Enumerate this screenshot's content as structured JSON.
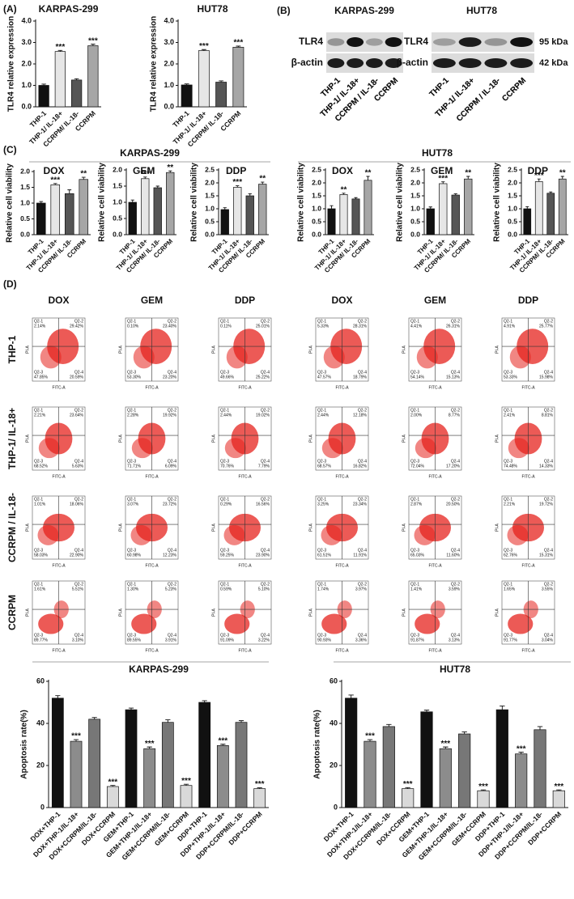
{
  "panel_labels": [
    "(A)",
    "(B)",
    "(C)",
    "(D)"
  ],
  "chart_data": [
    {
      "type": "bar",
      "title": "KARPAS-299",
      "y_label": "TLR4 relative expression",
      "categories": [
        "THP-1",
        "THP-1/ IL-18+",
        "CCRPM/ IL-18-",
        "CCRPM"
      ],
      "values": [
        1.0,
        2.58,
        1.25,
        2.85
      ],
      "errors": [
        0.06,
        0.05,
        0.06,
        0.07
      ],
      "colors": [
        "#111111",
        "#e6e6e6",
        "#555555",
        "#a6a6a6"
      ],
      "annotations": [
        null,
        "***",
        null,
        "***"
      ],
      "ylim": [
        0,
        4
      ],
      "yticks": [
        {
          "value": 0,
          "label": "0.0"
        },
        {
          "value": 1,
          "label": "1.0"
        },
        {
          "value": 2,
          "label": "2.0"
        },
        {
          "value": 3,
          "label": "3.0"
        },
        {
          "value": 4,
          "label": "4.0"
        }
      ]
    },
    {
      "type": "bar",
      "title": "HUT78",
      "y_label": "TLR4 relative expression",
      "categories": [
        "THP-1",
        "THP-1/ IL-18+",
        "CCRPM/ IL-18-",
        "CCRPM"
      ],
      "values": [
        1.02,
        2.62,
        1.15,
        2.78
      ],
      "errors": [
        0.05,
        0.05,
        0.06,
        0.05
      ],
      "colors": [
        "#111111",
        "#e6e6e6",
        "#555555",
        "#a6a6a6"
      ],
      "annotations": [
        null,
        "***",
        null,
        "***"
      ],
      "ylim": [
        0,
        4
      ],
      "yticks": [
        {
          "value": 0,
          "label": "0.0"
        },
        {
          "value": 1,
          "label": "1.0"
        },
        {
          "value": 2,
          "label": "2.0"
        },
        {
          "value": 3,
          "label": "3.0"
        },
        {
          "value": 4,
          "label": "4.0"
        }
      ]
    },
    {
      "type": "bar",
      "title": "DOX",
      "y_label": "Relative cell viability",
      "categories": [
        "THP-1",
        "THP-1/ IL-18+",
        "CCRPM/ IL-18-",
        "CCRPM"
      ],
      "values": [
        1.0,
        1.58,
        1.3,
        1.75
      ],
      "errors": [
        0.05,
        0.04,
        0.12,
        0.07
      ],
      "colors": [
        "#111111",
        "#e6e6e6",
        "#555555",
        "#a6a6a6"
      ],
      "annotations": [
        null,
        "***",
        null,
        "**"
      ],
      "ylim": [
        0,
        2
      ],
      "yticks": [
        {
          "value": 0,
          "label": "0.0"
        },
        {
          "value": 0.5,
          "label": "0.5"
        },
        {
          "value": 1,
          "label": "1.0"
        },
        {
          "value": 1.5,
          "label": "1.5"
        },
        {
          "value": 2,
          "label": "2.0"
        }
      ]
    },
    {
      "type": "bar",
      "title": "GEM",
      "y_label": "Relative cell viability",
      "categories": [
        "THP-1",
        "THP-1/ IL-18+",
        "CCRPM/ IL-18-",
        "CCRPM"
      ],
      "values": [
        1.0,
        1.73,
        1.45,
        1.92
      ],
      "errors": [
        0.07,
        0.05,
        0.05,
        0.05
      ],
      "colors": [
        "#111111",
        "#e6e6e6",
        "#555555",
        "#a6a6a6"
      ],
      "annotations": [
        null,
        "***",
        null,
        "**"
      ],
      "ylim": [
        0,
        2
      ],
      "yticks": [
        {
          "value": 0,
          "label": "0.0"
        },
        {
          "value": 0.5,
          "label": "0.5"
        },
        {
          "value": 1,
          "label": "1.0"
        },
        {
          "value": 1.5,
          "label": "1.5"
        },
        {
          "value": 2,
          "label": "2.0"
        }
      ]
    },
    {
      "type": "bar",
      "title": "DDP",
      "y_label": "Relative cell viability",
      "categories": [
        "THP-1",
        "THP-1/ IL-18+",
        "CCRPM/ IL-18-",
        "CCRPM"
      ],
      "values": [
        0.97,
        1.83,
        1.5,
        1.95
      ],
      "errors": [
        0.07,
        0.06,
        0.08,
        0.08
      ],
      "colors": [
        "#111111",
        "#e6e6e6",
        "#555555",
        "#a6a6a6"
      ],
      "annotations": [
        null,
        "***",
        null,
        "**"
      ],
      "ylim": [
        0,
        2.5
      ],
      "yticks": [
        {
          "value": 0,
          "label": "0.0"
        },
        {
          "value": 0.5,
          "label": "0.5"
        },
        {
          "value": 1,
          "label": "1.0"
        },
        {
          "value": 1.5,
          "label": "1.5"
        },
        {
          "value": 2,
          "label": "2.0"
        },
        {
          "value": 2.5,
          "label": "2.5"
        }
      ]
    },
    {
      "type": "bar",
      "title": "DOX",
      "y_label": "Relative cell viability",
      "categories": [
        "THP-1",
        "THP-1/ IL-18+",
        "CCRPM/ IL-18-",
        "CCRPM"
      ],
      "values": [
        1.0,
        1.55,
        1.38,
        2.1
      ],
      "errors": [
        0.12,
        0.05,
        0.05,
        0.15
      ],
      "colors": [
        "#111111",
        "#e6e6e6",
        "#555555",
        "#a6a6a6"
      ],
      "annotations": [
        null,
        "**",
        null,
        "**"
      ],
      "ylim": [
        0,
        2.5
      ],
      "yticks": [
        {
          "value": 0,
          "label": "0.0"
        },
        {
          "value": 0.5,
          "label": "0.5"
        },
        {
          "value": 1,
          "label": "1.0"
        },
        {
          "value": 1.5,
          "label": "1.5"
        },
        {
          "value": 2,
          "label": "2.0"
        },
        {
          "value": 2.5,
          "label": "2.5"
        }
      ]
    },
    {
      "type": "bar",
      "title": "GEM",
      "y_label": "Relative cell viability",
      "categories": [
        "THP-1",
        "THP-1/ IL-18+",
        "CCRPM/ IL-18-",
        "CCRPM"
      ],
      "values": [
        1.0,
        1.97,
        1.53,
        2.15
      ],
      "errors": [
        0.07,
        0.07,
        0.05,
        0.1
      ],
      "colors": [
        "#111111",
        "#e6e6e6",
        "#555555",
        "#a6a6a6"
      ],
      "annotations": [
        null,
        "***",
        null,
        "**"
      ],
      "ylim": [
        0,
        2.5
      ],
      "yticks": [
        {
          "value": 0,
          "label": "0.0"
        },
        {
          "value": 0.5,
          "label": "0.5"
        },
        {
          "value": 1,
          "label": "1.0"
        },
        {
          "value": 1.5,
          "label": "1.5"
        },
        {
          "value": 2,
          "label": "2.0"
        },
        {
          "value": 2.5,
          "label": "2.5"
        }
      ]
    },
    {
      "type": "bar",
      "title": "DDP",
      "y_label": "Relative cell viability",
      "categories": [
        "THP-1",
        "THP-1/ IL-18+",
        "CCRPM/ IL-18-",
        "CCRPM"
      ],
      "values": [
        1.0,
        2.05,
        1.6,
        2.15
      ],
      "errors": [
        0.08,
        0.1,
        0.05,
        0.1
      ],
      "colors": [
        "#111111",
        "#e6e6e6",
        "#555555",
        "#a6a6a6"
      ],
      "annotations": [
        null,
        "***",
        null,
        "**"
      ],
      "ylim": [
        0,
        2.5
      ],
      "yticks": [
        {
          "value": 0,
          "label": "0.0"
        },
        {
          "value": 0.5,
          "label": "0.5"
        },
        {
          "value": 1,
          "label": "1.0"
        },
        {
          "value": 1.5,
          "label": "1.5"
        },
        {
          "value": 2,
          "label": "2.0"
        },
        {
          "value": 2.5,
          "label": "2.5"
        }
      ]
    },
    {
      "type": "bar",
      "title": "KARPAS-299",
      "y_label": "Apoptosis rate(%)",
      "categories": [
        "DOX+THP-1",
        "DOX+THP-1/IL-18+",
        "DOX+CCRPM/IL-18-",
        "DOX+CCRPM",
        "GEM+THP-1",
        "GEM+THP-1/IL-18+",
        "GEM+CCRPM/IL-18-",
        "GEM+CCRPM",
        "DDP+THP-1",
        "DDP+THP-1/IL-18+",
        "DDP+CCRPM/IL-18-",
        "DDP+CCRPM"
      ],
      "values": [
        52,
        31.5,
        42,
        10,
        46.5,
        28,
        40.5,
        10.5,
        50,
        29.5,
        40.5,
        9
      ],
      "errors": [
        1.2,
        0.8,
        0.8,
        0.5,
        0.8,
        0.8,
        1.2,
        0.6,
        0.8,
        0.6,
        0.8,
        0.4
      ],
      "colors": [
        "#111111",
        "#8c8c8c",
        "#777777",
        "#d9d9d9",
        "#111111",
        "#8c8c8c",
        "#777777",
        "#d9d9d9",
        "#111111",
        "#8c8c8c",
        "#777777",
        "#d9d9d9"
      ],
      "annotations": [
        null,
        "***",
        null,
        "***",
        null,
        "***",
        null,
        "***",
        null,
        "***",
        null,
        "***"
      ],
      "ylim": [
        0,
        60
      ],
      "yticks": [
        0,
        20,
        40,
        60
      ]
    },
    {
      "type": "bar",
      "title": "HUT78",
      "y_label": "Apoptosis rate(%)",
      "categories": [
        "DOX+THP-1",
        "DOX+THP-1/IL-18+",
        "DOX+CCRPM/IL-18-",
        "DOX+CCRPM",
        "GEM+THP-1",
        "GEM+THP-1/IL-18+",
        "GEM+CCRPM/IL-18-",
        "GEM+CCRPM",
        "DDP+THP-1",
        "DDP+THP-1/IL-18+",
        "DDP+CCRPM/IL-18-",
        "DDP+CCRPM"
      ],
      "values": [
        52,
        31.5,
        38.5,
        9,
        45.5,
        28,
        35,
        8,
        46.5,
        25.5,
        37,
        8
      ],
      "errors": [
        1.5,
        0.8,
        1,
        0.5,
        0.8,
        0.8,
        1,
        0.4,
        1.8,
        0.8,
        1.5,
        0.4
      ],
      "colors": [
        "#111111",
        "#8c8c8c",
        "#777777",
        "#d9d9d9",
        "#111111",
        "#8c8c8c",
        "#777777",
        "#d9d9d9",
        "#111111",
        "#8c8c8c",
        "#777777",
        "#d9d9d9"
      ],
      "annotations": [
        null,
        "***",
        null,
        "***",
        null,
        "***",
        null,
        "***",
        null,
        "***",
        null,
        "***"
      ],
      "ylim": [
        0,
        60
      ],
      "yticks": [
        0,
        20,
        40,
        60
      ]
    }
  ],
  "panel_c_groups": [
    "KARPAS-299",
    "HUT78"
  ],
  "blot": {
    "titles": [
      "KARPAS-299",
      "HUT78"
    ],
    "rows": [
      "TLR4",
      "β-actin"
    ],
    "sizes": [
      "95 kDa",
      "42 kDa"
    ],
    "lanes": [
      "THP-1",
      "THP-1/ IL-18+",
      "CCRPM / IL-18-",
      "CCRPM"
    ]
  },
  "flow": {
    "columns": [
      "DOX",
      "GEM",
      "DDP",
      "DOX",
      "GEM",
      "DDP"
    ],
    "rows": [
      "THP-1",
      "THP-1/ IL-18+",
      "CCRPM / IL-18-",
      "CCRPM"
    ],
    "quadrants": [
      "Q2-1",
      "Q2-2",
      "Q2-3",
      "Q2-4"
    ],
    "x_label": "FITC-A",
    "y_label": "PI-A",
    "percents": [
      [
        [
          "2.14%",
          "29.42%",
          "47.85%",
          "20.59%"
        ],
        [
          "0.10%",
          "23.40%",
          "53.30%",
          "23.20%"
        ],
        [
          "0.11%",
          "25.01%",
          "49.66%",
          "25.22%"
        ],
        [
          "5.33%",
          "28.31%",
          "47.57%",
          "18.79%"
        ],
        [
          "4.41%",
          "26.31%",
          "54.14%",
          "15.13%"
        ],
        [
          "4.91%",
          "25.77%",
          "53.33%",
          "15.98%"
        ]
      ],
      [
        [
          "2.21%",
          "23.64%",
          "68.52%",
          "5.63%"
        ],
        [
          "2.28%",
          "19.92%",
          "71.71%",
          "6.09%"
        ],
        [
          "2.44%",
          "19.02%",
          "70.76%",
          "7.79%"
        ],
        [
          "2.44%",
          "12.18%",
          "68.57%",
          "16.82%"
        ],
        [
          "2.00%",
          "8.77%",
          "72.04%",
          "17.20%"
        ],
        [
          "2.41%",
          "8.81%",
          "74.48%",
          "14.33%"
        ]
      ],
      [
        [
          "1.01%",
          "18.06%",
          "58.03%",
          "22.90%"
        ],
        [
          "3.07%",
          "23.72%",
          "60.98%",
          "12.23%"
        ],
        [
          "0.29%",
          "16.56%",
          "59.25%",
          "23.90%"
        ],
        [
          "3.25%",
          "23.34%",
          "61.51%",
          "11.91%"
        ],
        [
          "2.87%",
          "20.50%",
          "65.03%",
          "11.60%"
        ],
        [
          "2.21%",
          "19.72%",
          "62.76%",
          "15.31%"
        ]
      ],
      [
        [
          "1.61%",
          "5.51%",
          "89.77%",
          "3.10%"
        ],
        [
          "1.30%",
          "5.23%",
          "89.55%",
          "3.91%"
        ],
        [
          "0.59%",
          "5.10%",
          "91.09%",
          "3.22%"
        ],
        [
          "1.74%",
          "3.97%",
          "90.93%",
          "3.36%"
        ],
        [
          "1.41%",
          "3.59%",
          "91.87%",
          "3.13%"
        ],
        [
          "1.65%",
          "3.55%",
          "91.77%",
          "3.04%"
        ]
      ]
    ]
  }
}
